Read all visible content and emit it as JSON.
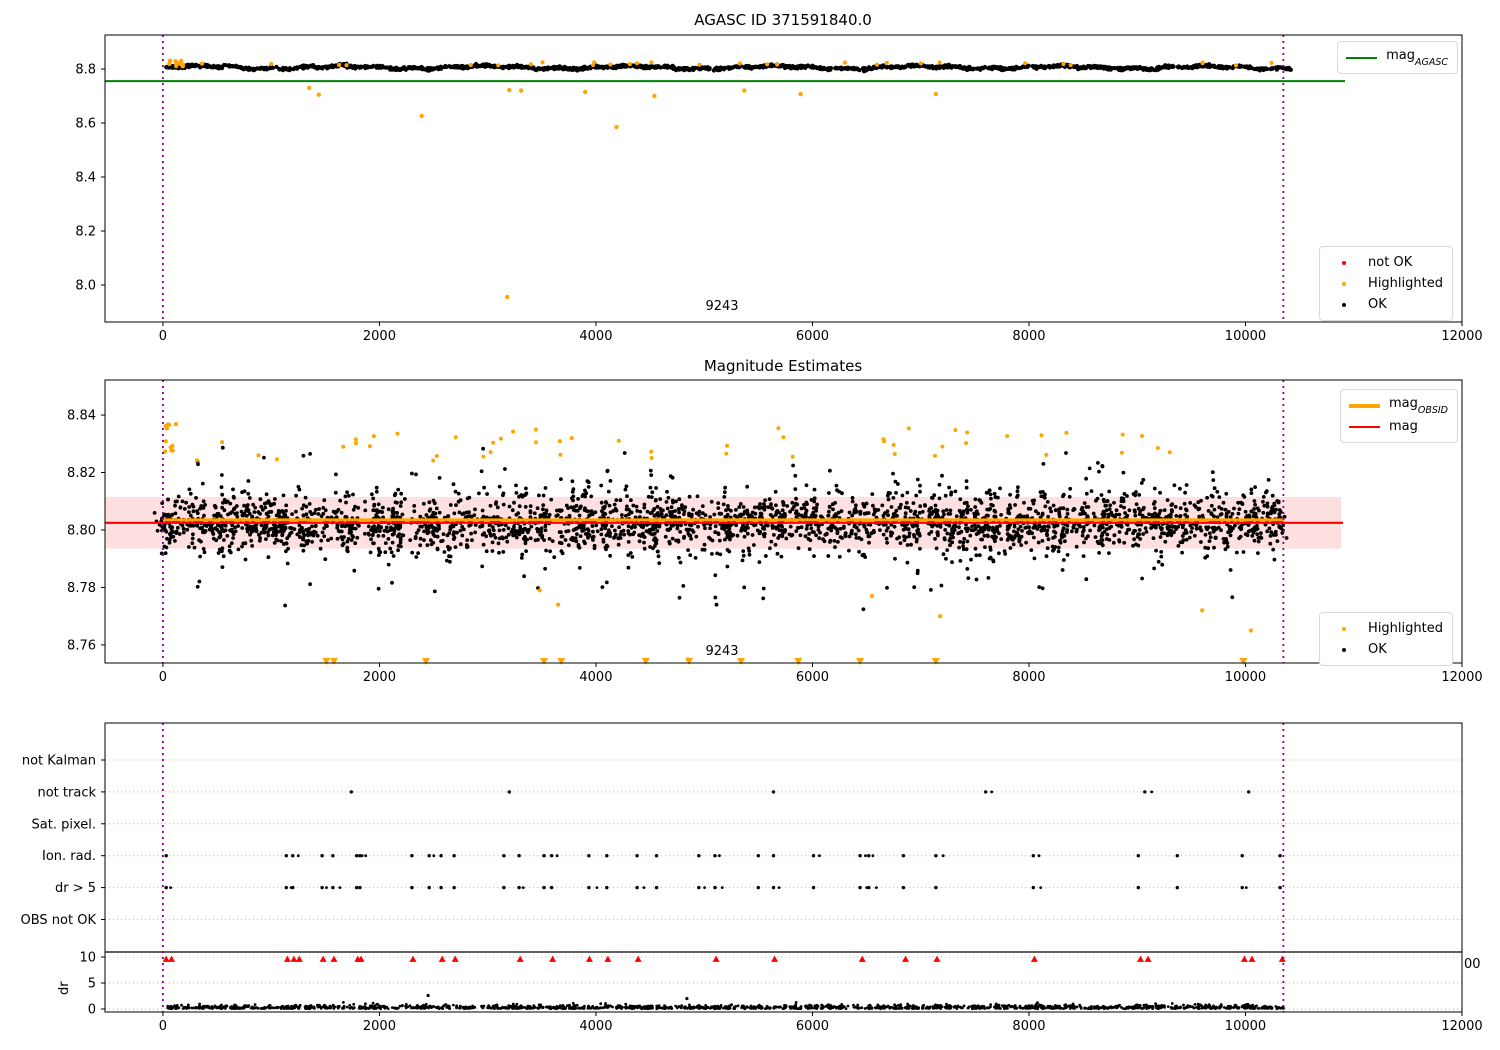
{
  "window": {
    "background": "#ffffff"
  },
  "colors": {
    "ok": "#000000",
    "highlighted": "#ffa500",
    "not_ok": "#ff0000",
    "mag_agasc_line": "#008000",
    "mag_line": "#ff0000",
    "mag_obsid_line": "#ffa500",
    "mag_band_fill": "rgba(255,0,0,0.12)",
    "obsid_vline": "#8b008b",
    "gridline": "#b5b5b5",
    "spine": "#000000"
  },
  "chart_data": [
    {
      "type": "scatter",
      "title": "AGASC ID 371591840.0",
      "xlim": [
        -535,
        12000
      ],
      "ylim": [
        7.863,
        8.926
      ],
      "xticks": [
        0,
        2000,
        4000,
        6000,
        8000,
        10000,
        12000
      ],
      "yticks": [
        "8.0",
        "8.2",
        "8.4",
        "8.6",
        "8.8"
      ],
      "annotation": {
        "text": "9243",
        "x": 5150
      },
      "vlines_x": [
        0,
        10350
      ],
      "hline": {
        "value": 8.755,
        "color": "#008000"
      },
      "legend_lines": [
        {
          "label": "mag",
          "sub": "AGASC",
          "color": "#008000"
        }
      ],
      "legend_markers": [
        {
          "label": "not OK",
          "color": "#ff0000"
        },
        {
          "label": "Highlighted",
          "color": "#ffa500"
        },
        {
          "label": "OK",
          "color": "#000000"
        }
      ],
      "ok_band": {
        "x_range": [
          20,
          10420
        ],
        "mean": 8.806,
        "n": 1600,
        "spread": 0.013
      },
      "highlighted_start_cluster": {
        "x_range": [
          20,
          190
        ],
        "y_range": [
          8.81,
          8.832
        ],
        "n": 14
      },
      "highlighted_band_top": {
        "n": 30,
        "y_range": [
          8.813,
          8.825
        ]
      },
      "highlighted_outliers": [
        [
          1350,
          8.73
        ],
        [
          1440,
          8.705
        ],
        [
          2390,
          8.626
        ],
        [
          3180,
          7.956
        ],
        [
          3200,
          8.722
        ],
        [
          3310,
          8.72
        ],
        [
          3900,
          8.715
        ],
        [
          4190,
          8.585
        ],
        [
          4540,
          8.7
        ],
        [
          5370,
          8.72
        ],
        [
          5890,
          8.707
        ],
        [
          7140,
          8.707
        ]
      ]
    },
    {
      "type": "scatter",
      "title": "Magnitude Estimates",
      "xlim": [
        -535,
        12000
      ],
      "ylim": [
        8.7537,
        8.8522
      ],
      "xticks": [
        0,
        2000,
        4000,
        6000,
        8000,
        10000,
        12000
      ],
      "yticks": [
        "8.76",
        "8.78",
        "8.80",
        "8.82",
        "8.84"
      ],
      "annotation": {
        "text": "9243",
        "x": 5150
      },
      "vlines_x": [
        0,
        10350
      ],
      "mag_line": {
        "value": 8.8025,
        "color": "#ff0000"
      },
      "obsid_line": {
        "value": 8.8035,
        "color": "#ffa500",
        "x_range": [
          0,
          10350
        ]
      },
      "band": {
        "low": 8.7935,
        "high": 8.8115
      },
      "legend_lines": [
        {
          "label": "mag",
          "sub": "OBSID",
          "color": "#ffa500",
          "thick": true
        },
        {
          "label": "mag",
          "sub": "",
          "color": "#ff0000"
        }
      ],
      "legend_markers": [
        {
          "label": "Highlighted",
          "color": "#ffa500"
        },
        {
          "label": "OK",
          "color": "#000000"
        }
      ],
      "clusters": {
        "n": 100,
        "x_range": [
          20,
          10420
        ],
        "mean": 8.8025,
        "core_sd": 0.0045,
        "top_tail_max": 8.829,
        "bottom_tail_min": 8.772
      },
      "highlighted_start_cluster": {
        "x_range": [
          20,
          140
        ],
        "y_range": [
          8.824,
          8.838
        ],
        "n": 9
      },
      "highlighted_low": [
        [
          3480,
          8.779
        ],
        [
          3650,
          8.774
        ],
        [
          4850,
          8.755
        ],
        [
          6550,
          8.777
        ],
        [
          7180,
          8.77
        ],
        [
          9600,
          8.772
        ],
        [
          10050,
          8.765
        ]
      ],
      "highlighted_triangles_x": [
        1510,
        1580,
        2430,
        3520,
        3680,
        4460,
        4860,
        5340,
        5870,
        6440,
        7140,
        9980
      ]
    },
    {
      "type": "flags",
      "categories": [
        "not Kalman",
        "not track",
        "Sat. pixel.",
        "Ion. rad.",
        "dr > 5",
        "OBS not OK"
      ],
      "xticks": [
        0,
        2000,
        4000,
        6000,
        8000,
        10000,
        12000
      ],
      "vlines_x": [
        0,
        10350
      ],
      "flag_points": {
        "not track": [
          1740,
          3200,
          5640,
          7600,
          9070,
          10030
        ],
        "Ion. rad.": [
          30,
          1140,
          1200,
          1470,
          1570,
          1790,
          1820,
          2300,
          2460,
          2570,
          2690,
          3150,
          3290,
          3520,
          3590,
          3935,
          4100,
          4380,
          4560,
          4950,
          5100,
          5500,
          5640,
          6010,
          6440,
          6520,
          6840,
          7140,
          8040,
          9010,
          9370,
          9970,
          10320
        ],
        "dr > 5": [
          30,
          1140,
          1200,
          1470,
          1570,
          1790,
          1820,
          2300,
          2460,
          2570,
          2690,
          3150,
          3290,
          3520,
          3590,
          3935,
          4100,
          4380,
          4560,
          4950,
          5100,
          5500,
          5640,
          6010,
          6440,
          6520,
          6840,
          7140,
          8040,
          9010,
          9370,
          9970,
          10320
        ]
      },
      "dr": {
        "label": "dr",
        "ticks": [
          "0",
          "5",
          "10"
        ],
        "red_clipped_x": [
          30,
          80,
          1150,
          1210,
          1260,
          1480,
          1580,
          1800,
          1830,
          2310,
          2580,
          2700,
          3300,
          3600,
          3940,
          4110,
          4390,
          5110,
          5650,
          6460,
          6860,
          7150,
          8050,
          9030,
          9100,
          9990,
          10060,
          10340
        ],
        "band": {
          "x_range": [
            20,
            10350
          ],
          "n": 1500
        },
        "black_outliers": [
          [
            2450,
            2.6
          ],
          [
            4840,
            2.0
          ]
        ]
      },
      "clipped_tick_label": "00"
    }
  ]
}
